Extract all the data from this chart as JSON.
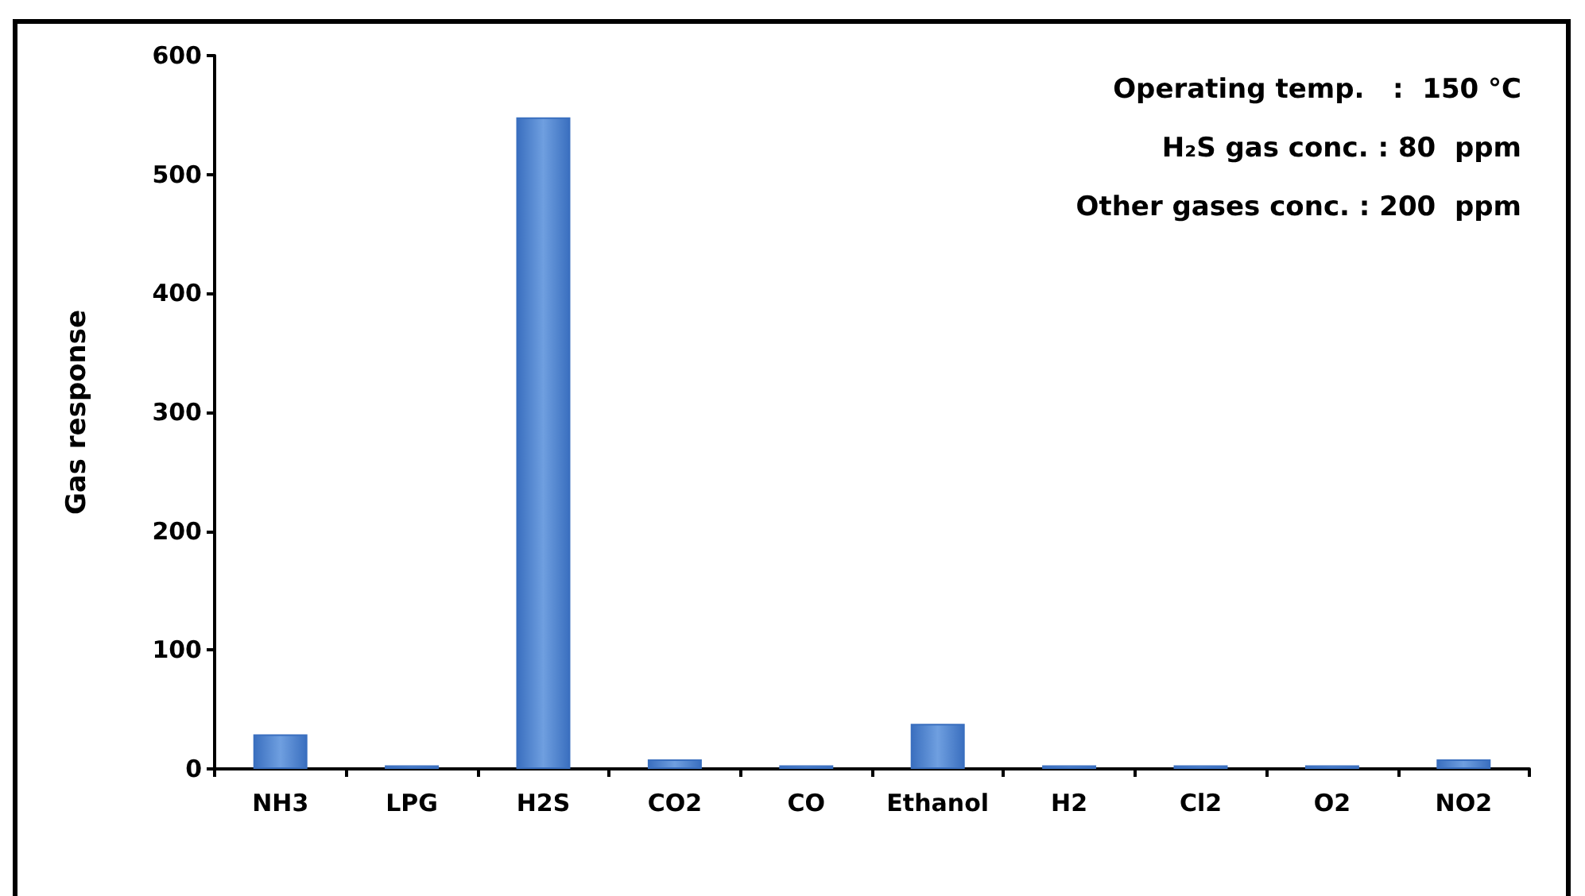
{
  "chart_data": {
    "type": "bar",
    "ylabel": "Gas response",
    "categories": [
      "NH3",
      "LPG",
      "H2S",
      "CO2",
      "CO",
      "Ethanol",
      "H2",
      "Cl2",
      "O2",
      "NO2"
    ],
    "values": [
      29,
      3,
      548,
      8,
      3,
      38,
      3,
      3,
      3,
      8
    ],
    "color": "#3a6fbf",
    "ylim": [
      0,
      600
    ],
    "yticks": [
      0,
      100,
      200,
      300,
      400,
      500,
      600
    ],
    "grid": false,
    "annotations": [
      "Operating temp.   :  150 °C",
      "H₂S gas conc. : 80  ppm",
      "Other gases conc. : 200  ppm"
    ]
  }
}
